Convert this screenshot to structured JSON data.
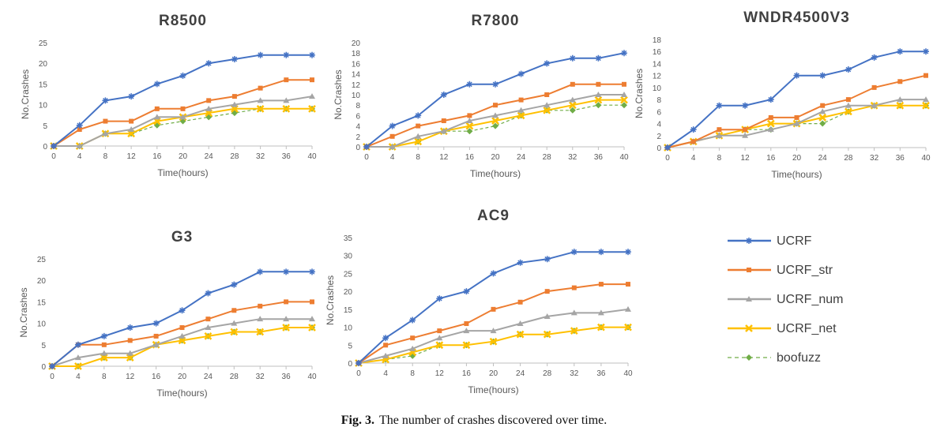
{
  "legend": {
    "position": "bottom-right",
    "entries": [
      {
        "name": "UCRF",
        "color": "#4472C4",
        "marker": "asterisk",
        "dashed": false
      },
      {
        "name": "UCRF_str",
        "color": "#ED7D31",
        "marker": "square",
        "dashed": false
      },
      {
        "name": "UCRF_num",
        "color": "#A5A5A5",
        "marker": "triangle",
        "dashed": false
      },
      {
        "name": "UCRF_net",
        "color": "#FFC000",
        "marker": "cross",
        "dashed": false
      },
      {
        "name": "boofuzz",
        "color": "#70AD47",
        "marker": "diamond",
        "dashed": true
      }
    ]
  },
  "caption": {
    "label": "Fig. 3.",
    "text": "The number of crashes discovered over time."
  },
  "chart_data": [
    {
      "type": "line",
      "title": "R8500",
      "xlabel": "Time(hours)",
      "ylabel": "No.Crashes",
      "x": [
        0,
        4,
        8,
        12,
        16,
        20,
        24,
        28,
        32,
        36,
        40
      ],
      "ylim": [
        0,
        25
      ],
      "yticks": [
        0,
        5,
        10,
        15,
        20,
        25
      ],
      "grid": false,
      "series": [
        {
          "name": "UCRF",
          "values": [
            0,
            5,
            11,
            12,
            15,
            17,
            20,
            21,
            22,
            22,
            22
          ]
        },
        {
          "name": "UCRF_str",
          "values": [
            0,
            4,
            6,
            6,
            9,
            9,
            11,
            12,
            14,
            16,
            16
          ]
        },
        {
          "name": "UCRF_num",
          "values": [
            0,
            0,
            3,
            4,
            7,
            7,
            9,
            10,
            11,
            11,
            12
          ]
        },
        {
          "name": "UCRF_net",
          "values": [
            0,
            0,
            3,
            3,
            6,
            7,
            8,
            9,
            9,
            9,
            9
          ]
        },
        {
          "name": "boofuzz",
          "values": [
            0,
            0,
            3,
            3,
            5,
            6,
            7,
            8,
            9,
            9,
            9
          ]
        }
      ]
    },
    {
      "type": "line",
      "title": "R7800",
      "xlabel": "Time(hours)",
      "ylabel": "No.Crashes",
      "x": [
        0,
        4,
        8,
        12,
        16,
        20,
        24,
        28,
        32,
        36,
        40
      ],
      "ylim": [
        0,
        20
      ],
      "yticks": [
        0,
        2,
        4,
        6,
        8,
        10,
        12,
        14,
        16,
        18,
        20
      ],
      "grid": false,
      "series": [
        {
          "name": "UCRF",
          "values": [
            0,
            4,
            6,
            10,
            12,
            12,
            14,
            16,
            17,
            17,
            18
          ]
        },
        {
          "name": "UCRF_str",
          "values": [
            0,
            2,
            4,
            5,
            6,
            8,
            9,
            10,
            12,
            12,
            12
          ]
        },
        {
          "name": "UCRF_num",
          "values": [
            0,
            0,
            2,
            3,
            5,
            6,
            7,
            8,
            9,
            10,
            10
          ]
        },
        {
          "name": "UCRF_net",
          "values": [
            0,
            0,
            1,
            3,
            4,
            5,
            6,
            7,
            8,
            9,
            9
          ]
        },
        {
          "name": "boofuzz",
          "values": [
            0,
            0,
            1,
            3,
            3,
            4,
            6,
            7,
            7,
            8,
            8
          ]
        }
      ]
    },
    {
      "type": "line",
      "title": "WNDR4500V3",
      "xlabel": "Time(hours)",
      "ylabel": "No.Crashes",
      "x": [
        0,
        4,
        8,
        12,
        16,
        20,
        24,
        28,
        32,
        36,
        40
      ],
      "ylim": [
        0,
        18
      ],
      "yticks": [
        0,
        2,
        4,
        6,
        8,
        10,
        12,
        14,
        16,
        18
      ],
      "grid": false,
      "series": [
        {
          "name": "UCRF",
          "values": [
            0,
            3,
            7,
            7,
            8,
            12,
            12,
            13,
            15,
            16,
            16
          ]
        },
        {
          "name": "UCRF_str",
          "values": [
            0,
            1,
            3,
            3,
            5,
            5,
            7,
            8,
            10,
            11,
            12
          ]
        },
        {
          "name": "UCRF_num",
          "values": [
            0,
            1,
            2,
            2,
            3,
            4,
            6,
            7,
            7,
            8,
            8
          ]
        },
        {
          "name": "UCRF_net",
          "values": [
            0,
            1,
            2,
            3,
            4,
            4,
            5,
            6,
            7,
            7,
            7
          ]
        },
        {
          "name": "boofuzz",
          "values": [
            0,
            1,
            2,
            3,
            3,
            4,
            4,
            6,
            7,
            7,
            7
          ]
        }
      ]
    },
    {
      "type": "line",
      "title": "G3",
      "xlabel": "Time(hours)",
      "ylabel": "No.Crashes",
      "x": [
        0,
        4,
        8,
        12,
        16,
        20,
        24,
        28,
        32,
        36,
        40
      ],
      "ylim": [
        0,
        25
      ],
      "yticks": [
        0,
        5,
        10,
        15,
        20,
        25
      ],
      "grid": false,
      "series": [
        {
          "name": "UCRF",
          "values": [
            0,
            5,
            7,
            9,
            10,
            13,
            17,
            19,
            22,
            22,
            22
          ]
        },
        {
          "name": "UCRF_str",
          "values": [
            0,
            5,
            5,
            6,
            7,
            9,
            11,
            13,
            14,
            15,
            15
          ]
        },
        {
          "name": "UCRF_num",
          "values": [
            0,
            2,
            3,
            3,
            5,
            7,
            9,
            10,
            11,
            11,
            11
          ]
        },
        {
          "name": "UCRF_net",
          "values": [
            0,
            0,
            2,
            2,
            5,
            6,
            7,
            8,
            8,
            9,
            9
          ]
        },
        {
          "name": "boofuzz",
          "values": [
            0,
            0,
            2,
            2,
            5,
            6,
            7,
            8,
            8,
            9,
            9
          ]
        }
      ]
    },
    {
      "type": "line",
      "title": "AC9",
      "xlabel": "Time(hours)",
      "ylabel": "No.Crashes",
      "x": [
        0,
        4,
        8,
        12,
        16,
        20,
        24,
        28,
        32,
        36,
        40
      ],
      "ylim": [
        0,
        35
      ],
      "yticks": [
        0,
        5,
        10,
        15,
        20,
        25,
        30,
        35
      ],
      "grid": false,
      "series": [
        {
          "name": "UCRF",
          "values": [
            0,
            7,
            12,
            18,
            20,
            25,
            28,
            29,
            31,
            31,
            31
          ]
        },
        {
          "name": "UCRF_str",
          "values": [
            0,
            5,
            7,
            9,
            11,
            15,
            17,
            20,
            21,
            22,
            22
          ]
        },
        {
          "name": "UCRF_num",
          "values": [
            0,
            2,
            4,
            7,
            9,
            9,
            11,
            13,
            14,
            14,
            15
          ]
        },
        {
          "name": "UCRF_net",
          "values": [
            0,
            1,
            3,
            5,
            5,
            6,
            8,
            8,
            9,
            10,
            10
          ]
        },
        {
          "name": "boofuzz",
          "values": [
            0,
            1,
            2,
            5,
            5,
            6,
            8,
            8,
            9,
            10,
            10
          ]
        }
      ]
    }
  ]
}
